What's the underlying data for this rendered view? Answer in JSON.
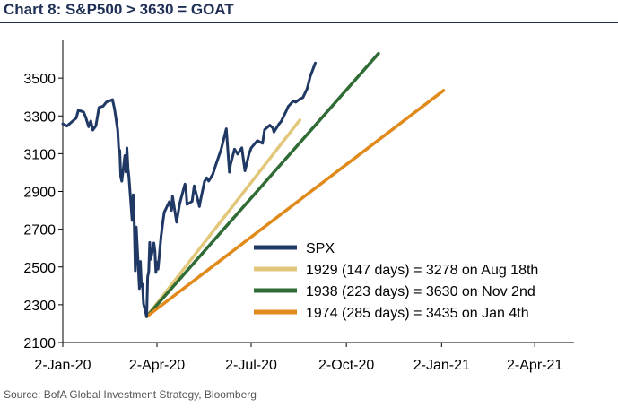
{
  "title": "Chart 8: S&P500 > 3630 = GOAT",
  "source": "Source: BofA Global Investment Strategy, Bloomberg",
  "chart_data": {
    "type": "line",
    "title": "Chart 8: S&P500 > 3630 = GOAT",
    "xlabel": "",
    "ylabel": "",
    "ylim": [
      2100,
      3700
    ],
    "yticks": [
      2100,
      2300,
      2500,
      2700,
      2900,
      3100,
      3300,
      3500
    ],
    "xticks": [
      "2-Jan-20",
      "2-Apr-20",
      "2-Jul-20",
      "2-Oct-20",
      "2-Jan-21",
      "2-Apr-21"
    ],
    "xtick_dates": [
      "2020-01-02",
      "2020-04-02",
      "2020-07-02",
      "2020-10-02",
      "2021-01-02",
      "2021-04-02"
    ],
    "xlim": [
      "2020-01-02",
      "2021-05-10"
    ],
    "grid": false,
    "legend_position": "bottom-right",
    "series": [
      {
        "name": "SPX",
        "color": "#1f3864",
        "points": [
          [
            "2020-01-02",
            3258
          ],
          [
            "2020-01-06",
            3246
          ],
          [
            "2020-01-10",
            3265
          ],
          [
            "2020-01-15",
            3289
          ],
          [
            "2020-01-17",
            3330
          ],
          [
            "2020-01-22",
            3321
          ],
          [
            "2020-01-24",
            3295
          ],
          [
            "2020-01-27",
            3243
          ],
          [
            "2020-01-29",
            3273
          ],
          [
            "2020-01-31",
            3225
          ],
          [
            "2020-02-03",
            3248
          ],
          [
            "2020-02-06",
            3345
          ],
          [
            "2020-02-10",
            3352
          ],
          [
            "2020-02-13",
            3373
          ],
          [
            "2020-02-19",
            3386
          ],
          [
            "2020-02-21",
            3337
          ],
          [
            "2020-02-24",
            3225
          ],
          [
            "2020-02-25",
            3128
          ],
          [
            "2020-02-26",
            3116
          ],
          [
            "2020-02-27",
            2978
          ],
          [
            "2020-02-28",
            2954
          ],
          [
            "2020-03-02",
            3090
          ],
          [
            "2020-03-03",
            3003
          ],
          [
            "2020-03-04",
            3130
          ],
          [
            "2020-03-05",
            3023
          ],
          [
            "2020-03-06",
            2972
          ],
          [
            "2020-03-09",
            2746
          ],
          [
            "2020-03-10",
            2882
          ],
          [
            "2020-03-11",
            2741
          ],
          [
            "2020-03-12",
            2480
          ],
          [
            "2020-03-13",
            2711
          ],
          [
            "2020-03-16",
            2386
          ],
          [
            "2020-03-17",
            2529
          ],
          [
            "2020-03-18",
            2398
          ],
          [
            "2020-03-19",
            2409
          ],
          [
            "2020-03-20",
            2305
          ],
          [
            "2020-03-23",
            2237
          ],
          [
            "2020-03-24",
            2447
          ],
          [
            "2020-03-25",
            2475
          ],
          [
            "2020-03-26",
            2630
          ],
          [
            "2020-03-27",
            2541
          ],
          [
            "2020-03-30",
            2627
          ],
          [
            "2020-03-31",
            2585
          ],
          [
            "2020-04-01",
            2471
          ],
          [
            "2020-04-02",
            2526
          ],
          [
            "2020-04-03",
            2489
          ],
          [
            "2020-04-06",
            2664
          ],
          [
            "2020-04-08",
            2750
          ],
          [
            "2020-04-09",
            2790
          ],
          [
            "2020-04-14",
            2846
          ],
          [
            "2020-04-16",
            2800
          ],
          [
            "2020-04-17",
            2875
          ],
          [
            "2020-04-21",
            2737
          ],
          [
            "2020-04-24",
            2837
          ],
          [
            "2020-04-29",
            2939
          ],
          [
            "2020-04-30",
            2912
          ],
          [
            "2020-05-01",
            2831
          ],
          [
            "2020-05-06",
            2848
          ],
          [
            "2020-05-08",
            2930
          ],
          [
            "2020-05-13",
            2820
          ],
          [
            "2020-05-14",
            2852
          ],
          [
            "2020-05-18",
            2954
          ],
          [
            "2020-05-20",
            2972
          ],
          [
            "2020-05-22",
            2955
          ],
          [
            "2020-05-26",
            2991
          ],
          [
            "2020-05-29",
            3044
          ],
          [
            "2020-06-03",
            3122
          ],
          [
            "2020-06-08",
            3232
          ],
          [
            "2020-06-11",
            3002
          ],
          [
            "2020-06-12",
            3041
          ],
          [
            "2020-06-16",
            3124
          ],
          [
            "2020-06-19",
            3098
          ],
          [
            "2020-06-23",
            3131
          ],
          [
            "2020-06-26",
            3009
          ],
          [
            "2020-06-30",
            3100
          ],
          [
            "2020-07-02",
            3130
          ],
          [
            "2020-07-08",
            3169
          ],
          [
            "2020-07-13",
            3155
          ],
          [
            "2020-07-15",
            3227
          ],
          [
            "2020-07-20",
            3251
          ],
          [
            "2020-07-23",
            3236
          ],
          [
            "2020-07-24",
            3215
          ],
          [
            "2020-07-29",
            3258
          ],
          [
            "2020-07-31",
            3271
          ],
          [
            "2020-08-05",
            3327
          ],
          [
            "2020-08-07",
            3351
          ],
          [
            "2020-08-12",
            3380
          ],
          [
            "2020-08-14",
            3373
          ],
          [
            "2020-08-18",
            3389
          ],
          [
            "2020-08-21",
            3397
          ],
          [
            "2020-08-25",
            3443
          ],
          [
            "2020-08-27",
            3484
          ],
          [
            "2020-08-28",
            3508
          ],
          [
            "2020-09-02",
            3580
          ]
        ]
      },
      {
        "name": "1929 (147 days) = 3278 on Aug 18th",
        "color": "#e2c77b",
        "points": [
          [
            "2020-03-23",
            2237
          ],
          [
            "2020-08-18",
            3278
          ]
        ]
      },
      {
        "name": "1938 (223 days) = 3630 on Nov 2nd",
        "color": "#2f6b34",
        "points": [
          [
            "2020-03-23",
            2237
          ],
          [
            "2020-11-02",
            3630
          ]
        ]
      },
      {
        "name": "1974 (285 days) = 3435 on Jan 4th",
        "color": "#e18a1c",
        "points": [
          [
            "2020-03-23",
            2237
          ],
          [
            "2021-01-04",
            3435
          ]
        ]
      }
    ]
  }
}
